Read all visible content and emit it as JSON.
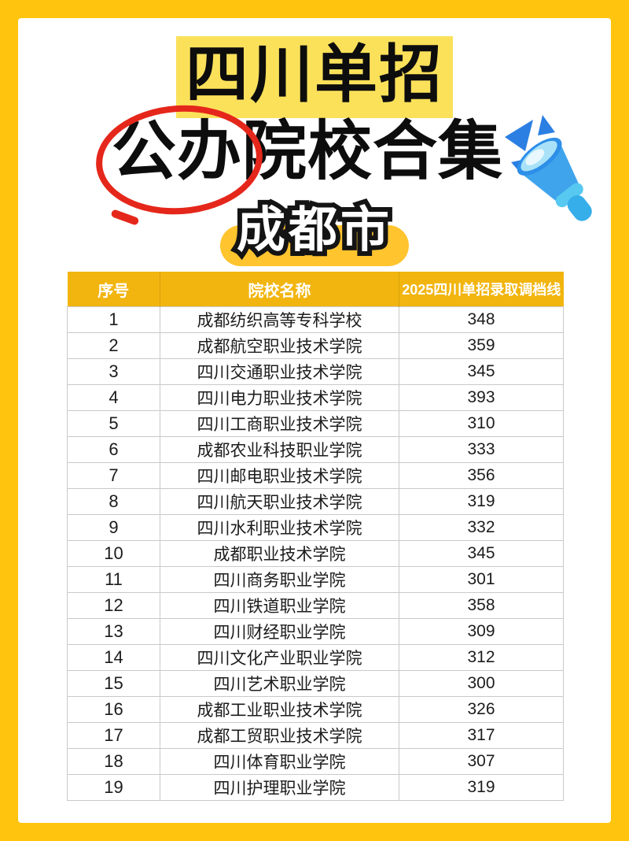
{
  "hero": {
    "title_line1": "四川单招",
    "title_line2_circled": "公办",
    "title_line2_rest": "院校合集",
    "city": "成都市"
  },
  "icons": {
    "megaphone": "megaphone-icon"
  },
  "colors": {
    "frame_yellow": "#FFC40D",
    "title_highlight": "#FBE15A",
    "city_pill": "#FFC42E",
    "table_header_gold": "#F2B50F",
    "circle_red": "#E5271B",
    "megaphone_blue": "#2E8FE8"
  },
  "table": {
    "columns": [
      "序号",
      "院校名称",
      "2025四川单招录取调档线"
    ],
    "rows": [
      {
        "no": "1",
        "name": "成都纺织高等专科学校",
        "score": "348"
      },
      {
        "no": "2",
        "name": "成都航空职业技术学院",
        "score": "359"
      },
      {
        "no": "3",
        "name": "四川交通职业技术学院",
        "score": "345"
      },
      {
        "no": "4",
        "name": "四川电力职业技术学院",
        "score": "393"
      },
      {
        "no": "5",
        "name": "四川工商职业技术学院",
        "score": "310"
      },
      {
        "no": "6",
        "name": "成都农业科技职业学院",
        "score": "333"
      },
      {
        "no": "7",
        "name": "四川邮电职业技术学院",
        "score": "356"
      },
      {
        "no": "8",
        "name": "四川航天职业技术学院",
        "score": "319"
      },
      {
        "no": "9",
        "name": "四川水利职业技术学院",
        "score": "332"
      },
      {
        "no": "10",
        "name": "成都职业技术学院",
        "score": "345"
      },
      {
        "no": "11",
        "name": "四川商务职业学院",
        "score": "301"
      },
      {
        "no": "12",
        "name": "四川铁道职业学院",
        "score": "358"
      },
      {
        "no": "13",
        "name": "四川财经职业学院",
        "score": "309"
      },
      {
        "no": "14",
        "name": "四川文化产业职业学院",
        "score": "312"
      },
      {
        "no": "15",
        "name": "四川艺术职业学院",
        "score": "300"
      },
      {
        "no": "16",
        "name": "成都工业职业技术学院",
        "score": "326"
      },
      {
        "no": "17",
        "name": "成都工贸职业技术学院",
        "score": "317"
      },
      {
        "no": "18",
        "name": "四川体育职业学院",
        "score": "307"
      },
      {
        "no": "19",
        "name": "四川护理职业学院",
        "score": "319"
      }
    ]
  }
}
